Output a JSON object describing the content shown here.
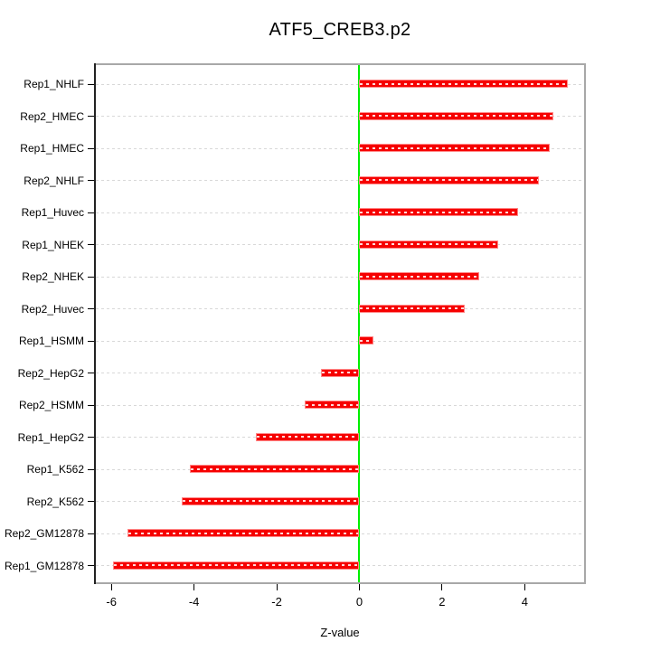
{
  "title": "ATF5_CREB3.p2",
  "chart_data": {
    "type": "bar",
    "orientation": "horizontal",
    "title": "ATF5_CREB3.p2",
    "xlabel": "Z-value",
    "ylabel": "",
    "categories": [
      "Rep1_NHLF",
      "Rep2_HMEC",
      "Rep1_HMEC",
      "Rep2_NHLF",
      "Rep1_Huvec",
      "Rep1_NHEK",
      "Rep2_NHEK",
      "Rep2_Huvec",
      "Rep1_HSMM",
      "Rep2_HepG2",
      "Rep2_HSMM",
      "Rep1_HepG2",
      "Rep1_K562",
      "Rep2_K562",
      "Rep2_GM12878",
      "Rep1_GM12878"
    ],
    "values": [
      5.05,
      4.7,
      4.6,
      4.35,
      3.85,
      3.35,
      2.9,
      2.55,
      0.33,
      -0.93,
      -1.33,
      -2.5,
      -4.1,
      -4.3,
      -5.6,
      -5.95
    ],
    "xlim": [
      -6.42,
      5.48
    ],
    "xticks": [
      -6,
      -4,
      -2,
      0,
      2,
      4
    ],
    "grid": true,
    "legend": null,
    "colors": {
      "bar_fill": "#f60000",
      "bar_border": "#ff8888",
      "zero_line": "#00ef00",
      "gridline": "#d8d8d8",
      "plot_border": "#a8a8a8",
      "axis": "#000000",
      "text": "#000000",
      "background": "#ffffff"
    }
  }
}
